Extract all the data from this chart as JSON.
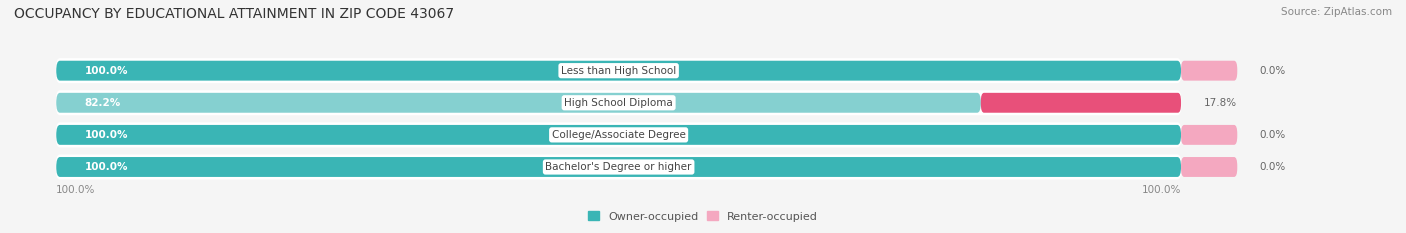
{
  "title": "OCCUPANCY BY EDUCATIONAL ATTAINMENT IN ZIP CODE 43067",
  "source": "Source: ZipAtlas.com",
  "categories": [
    "Less than High School",
    "High School Diploma",
    "College/Associate Degree",
    "Bachelor's Degree or higher"
  ],
  "owner_values": [
    100.0,
    82.2,
    100.0,
    100.0
  ],
  "renter_values": [
    0.0,
    17.8,
    0.0,
    0.0
  ],
  "owner_color": "#3ab5b5",
  "renter_color_strong": "#e8507a",
  "renter_color_light": "#f4a8c0",
  "owner_color_light": "#85d0d0",
  "bar_bg_color": "#efefef",
  "row_bg_color": "#f9f9f9",
  "background_color": "#f5f5f5",
  "title_fontsize": 10,
  "source_fontsize": 7.5,
  "label_fontsize": 7.5,
  "axis_label_fontsize": 7.5,
  "legend_fontsize": 8,
  "axis_left_label": "100.0%",
  "axis_right_label": "100.0%"
}
